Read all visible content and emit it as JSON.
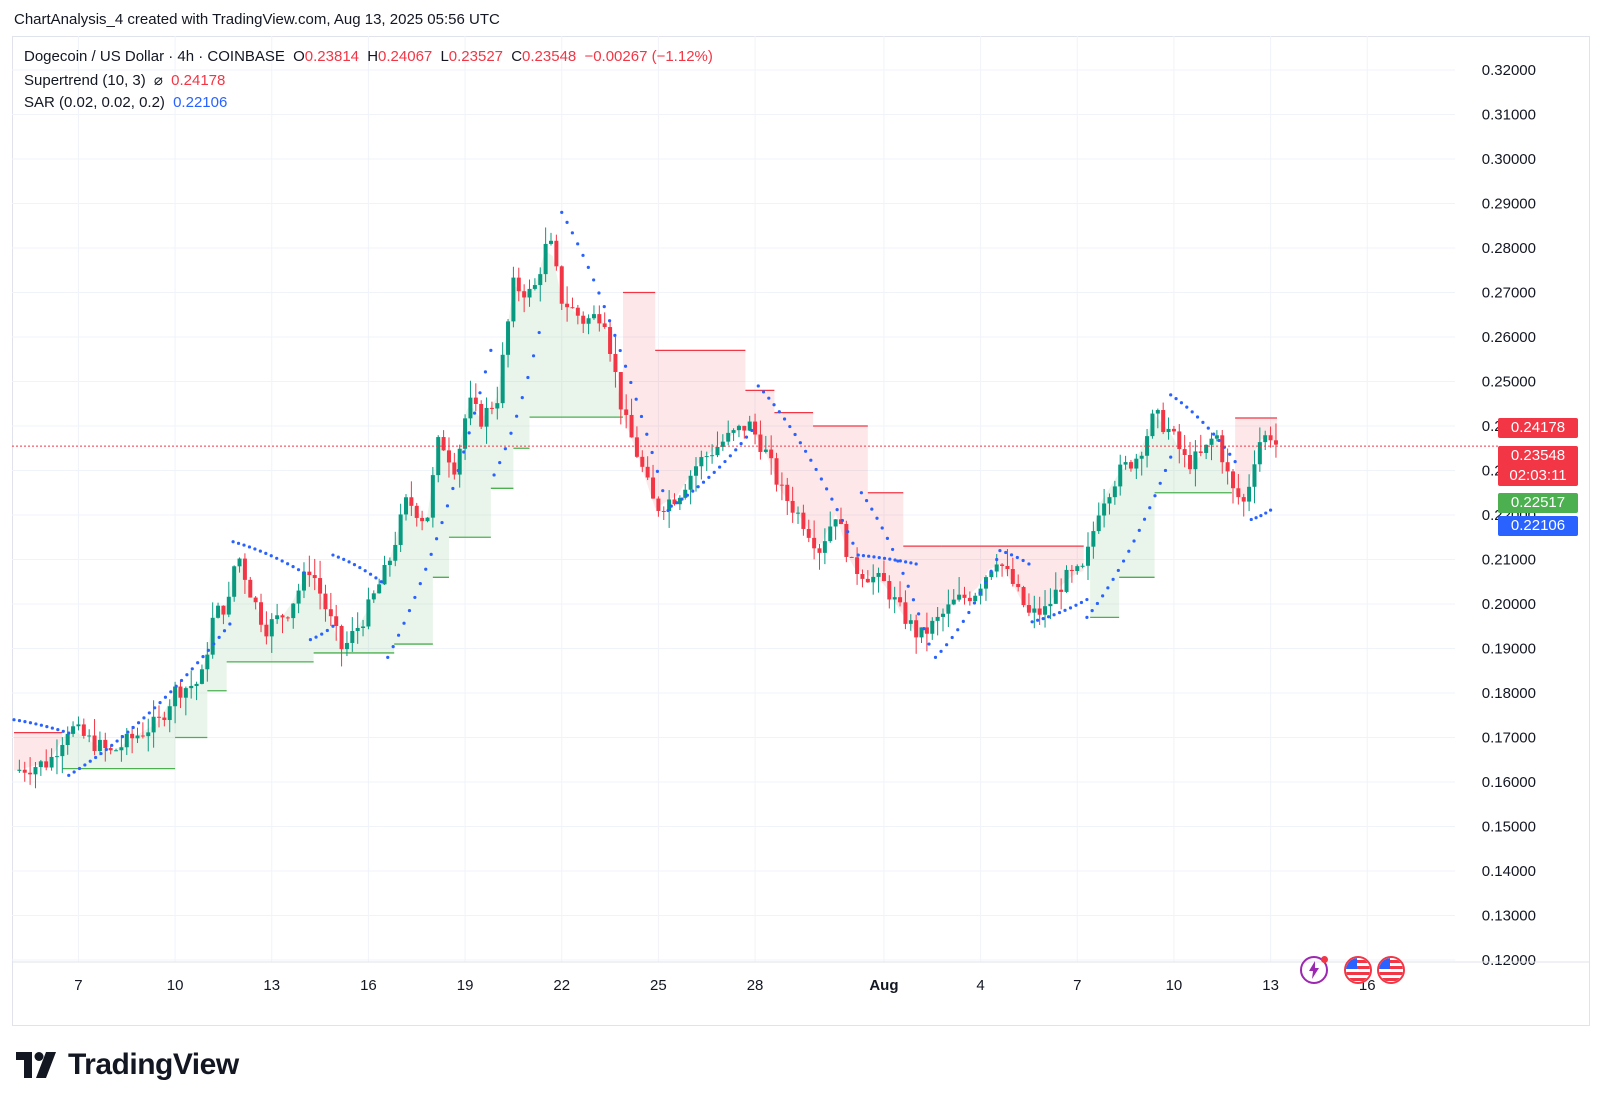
{
  "header": {
    "credit": "ChartAnalysis_4 created with TradingView.com, Aug 13, 2025 05:56 UTC"
  },
  "legend": {
    "symbol": "Dogecoin / US Dollar · 4h · COINBASE",
    "o_label": "O",
    "o_value": "0.23814",
    "h_label": "H",
    "h_value": "0.24067",
    "l_label": "L",
    "l_value": "0.23527",
    "c_label": "C",
    "c_value": "0.23548",
    "change": "−0.00267 (−1.12%)",
    "supertrend_label": "Supertrend (10, 3)",
    "supertrend_symbol": "⌀",
    "supertrend_value": "0.24178",
    "sar_label": "SAR (0.02, 0.02, 0.2)",
    "sar_value": "0.22106"
  },
  "price_tags": {
    "supertrend": "0.24178",
    "last_price": "0.23548",
    "countdown": "02:03:11",
    "support": "0.22517",
    "sar": "0.22106"
  },
  "colors": {
    "up": "#089981",
    "down": "#f23645",
    "sar": "#2962ff",
    "supertrend_up": "#4caf50",
    "supertrend_down": "#f23645"
  },
  "chart_data": {
    "type": "candlestick",
    "ylim": [
      0.12,
      0.32
    ],
    "y_ticks": [
      "0.32000",
      "0.31000",
      "0.30000",
      "0.29000",
      "0.28000",
      "0.27000",
      "0.26000",
      "0.25000",
      "0.24000",
      "0.23000",
      "0.22000",
      "0.21000",
      "0.20000",
      "0.19000",
      "0.18000",
      "0.17000",
      "0.16000",
      "0.15000",
      "0.14000",
      "0.13000",
      "0.12000"
    ],
    "x_ticks": [
      "7",
      "10",
      "13",
      "16",
      "19",
      "22",
      "25",
      "28",
      "Aug",
      "4",
      "7",
      "10",
      "13",
      "16"
    ],
    "date_start": "Jul 5",
    "close_path": [
      {
        "d": "Jul 5.0",
        "v": 0.1625
      },
      {
        "d": "Jul 6.1",
        "v": 0.1645
      },
      {
        "d": "Jul 6.7",
        "v": 0.1725
      },
      {
        "d": "Jul 7.3",
        "v": 0.1695
      },
      {
        "d": "Jul 8.0",
        "v": 0.1665
      },
      {
        "d": "Jul 8.8",
        "v": 0.1705
      },
      {
        "d": "Jul 9.5",
        "v": 0.1735
      },
      {
        "d": "Jul 10.0",
        "v": 0.1805
      },
      {
        "d": "Jul 10.8",
        "v": 0.1825
      },
      {
        "d": "Jul 11.2",
        "v": 0.1975
      },
      {
        "d": "Jul 11.7",
        "v": 0.2005
      },
      {
        "d": "Jul 11.9",
        "v": 0.2125
      },
      {
        "d": "Jul 12.3",
        "v": 0.2035
      },
      {
        "d": "Jul 12.8",
        "v": 0.1945
      },
      {
        "d": "Jul 13.5",
        "v": 0.1985
      },
      {
        "d": "Jul 14.2",
        "v": 0.2085
      },
      {
        "d": "Jul 14.7",
        "v": 0.1985
      },
      {
        "d": "Jul 15.2",
        "v": 0.1895
      },
      {
        "d": "Jul 15.9",
        "v": 0.1975
      },
      {
        "d": "Jul 16.6",
        "v": 0.2085
      },
      {
        "d": "Jul 17.2",
        "v": 0.2235
      },
      {
        "d": "Jul 17.8",
        "v": 0.2185
      },
      {
        "d": "Jul 18.2",
        "v": 0.2375
      },
      {
        "d": "Jul 18.7",
        "v": 0.2305
      },
      {
        "d": "Jul 19.1",
        "v": 0.2455
      },
      {
        "d": "Jul 19.5",
        "v": 0.2415
      },
      {
        "d": "Jul 20.0",
        "v": 0.2465
      },
      {
        "d": "Jul 20.5",
        "v": 0.2715
      },
      {
        "d": "Jul 21.1",
        "v": 0.2695
      },
      {
        "d": "Jul 21.6",
        "v": 0.2825
      },
      {
        "d": "Jul 22.0",
        "v": 0.2685
      },
      {
        "d": "Jul 22.7",
        "v": 0.2635
      },
      {
        "d": "Jul 23.3",
        "v": 0.2655
      },
      {
        "d": "Jul 23.9",
        "v": 0.2425
      },
      {
        "d": "Jul 24.4",
        "v": 0.2325
      },
      {
        "d": "Jul 24.9",
        "v": 0.2215
      },
      {
        "d": "Jul 25.6",
        "v": 0.2245
      },
      {
        "d": "Jul 26.2",
        "v": 0.2315
      },
      {
        "d": "Jul 27.0",
        "v": 0.2365
      },
      {
        "d": "Jul 27.8",
        "v": 0.2405
      },
      {
        "d": "Jul 28.3",
        "v": 0.2345
      },
      {
        "d": "Jul 28.8",
        "v": 0.2255
      },
      {
        "d": "Jul 29.5",
        "v": 0.2185
      },
      {
        "d": "Jul 30.0",
        "v": 0.2125
      },
      {
        "d": "Jul 30.5",
        "v": 0.2205
      },
      {
        "d": "Jul 31.0",
        "v": 0.2085
      },
      {
        "d": "Aug 1.0",
        "v": 0.2045
      },
      {
        "d": "Aug 1.5",
        "v": 0.1985
      },
      {
        "d": "Aug 2.1",
        "v": 0.1925
      },
      {
        "d": "Aug 2.7",
        "v": 0.1965
      },
      {
        "d": "Aug 3.2",
        "v": 0.2005
      },
      {
        "d": "Aug 3.8",
        "v": 0.2025
      },
      {
        "d": "Aug 4.5",
        "v": 0.2105
      },
      {
        "d": "Aug 5.0",
        "v": 0.2045
      },
      {
        "d": "Aug 5.5",
        "v": 0.1975
      },
      {
        "d": "Aug 6.0",
        "v": 0.1985
      },
      {
        "d": "Aug 6.6",
        "v": 0.2055
      },
      {
        "d": "Aug 7.2",
        "v": 0.2075
      },
      {
        "d": "Aug 7.7",
        "v": 0.2225
      },
      {
        "d": "Aug 8.3",
        "v": 0.2295
      },
      {
        "d": "Aug 8.9",
        "v": 0.2335
      },
      {
        "d": "Aug 9.4",
        "v": 0.2425
      },
      {
        "d": "Aug 9.9",
        "v": 0.2385
      },
      {
        "d": "Aug 10.4",
        "v": 0.2315
      },
      {
        "d": "Aug 10.9",
        "v": 0.2335
      },
      {
        "d": "Aug 11.3",
        "v": 0.2385
      },
      {
        "d": "Aug 11.8",
        "v": 0.2255
      },
      {
        "d": "Aug 12.2",
        "v": 0.2225
      },
      {
        "d": "Aug 12.6",
        "v": 0.2365
      },
      {
        "d": "Aug 13.0",
        "v": 0.2381
      },
      {
        "d": "Aug 13.2",
        "v": 0.2355
      }
    ],
    "supertrend": [
      {
        "from": "Jul 5.0",
        "to": "Jul 6.5",
        "value": 0.1711,
        "dir": "down"
      },
      {
        "from": "Jul 6.5",
        "to": "Jul 10.0",
        "value": 0.163,
        "dir": "up"
      },
      {
        "from": "Jul 10.0",
        "to": "Jul 11.0",
        "value": 0.17,
        "dir": "up"
      },
      {
        "from": "Jul 11.0",
        "to": "Jul 11.6",
        "value": 0.1805,
        "dir": "up"
      },
      {
        "from": "Jul 11.6",
        "to": "Jul 14.3",
        "value": 0.187,
        "dir": "up"
      },
      {
        "from": "Jul 14.3",
        "to": "Jul 16.8",
        "value": 0.189,
        "dir": "up"
      },
      {
        "from": "Jul 16.8",
        "to": "Jul 18.0",
        "value": 0.191,
        "dir": "up"
      },
      {
        "from": "Jul 18.0",
        "to": "Jul 18.5",
        "value": 0.206,
        "dir": "up"
      },
      {
        "from": "Jul 18.5",
        "to": "Jul 19.8",
        "value": 0.215,
        "dir": "up"
      },
      {
        "from": "Jul 19.8",
        "to": "Jul 20.5",
        "value": 0.226,
        "dir": "up"
      },
      {
        "from": "Jul 20.5",
        "to": "Jul 21.0",
        "value": 0.235,
        "dir": "up"
      },
      {
        "from": "Jul 21.0",
        "to": "Jul 23.9",
        "value": 0.242,
        "dir": "up"
      },
      {
        "from": "Jul 23.9",
        "to": "Jul 24.9",
        "value": 0.27,
        "dir": "down"
      },
      {
        "from": "Jul 24.9",
        "to": "Jul 27.7",
        "value": 0.257,
        "dir": "down"
      },
      {
        "from": "Jul 27.7",
        "to": "Jul 28.6",
        "value": 0.248,
        "dir": "down"
      },
      {
        "from": "Jul 28.6",
        "to": "Jul 29.8",
        "value": 0.243,
        "dir": "down"
      },
      {
        "from": "Jul 29.8",
        "to": "Jul 31.5",
        "value": 0.24,
        "dir": "down"
      },
      {
        "from": "Jul 31.5",
        "to": "Aug 1.6",
        "value": 0.225,
        "dir": "down"
      },
      {
        "from": "Aug 1.6",
        "to": "Aug 2.8",
        "value": 0.213,
        "dir": "down"
      },
      {
        "from": "Aug 2.8",
        "to": "Aug 7.2",
        "value": 0.213,
        "dir": "down"
      },
      {
        "from": "Aug 7.4",
        "to": "Aug 8.3",
        "value": 0.197,
        "dir": "up"
      },
      {
        "from": "Aug 8.3",
        "to": "Aug 9.4",
        "value": 0.206,
        "dir": "up"
      },
      {
        "from": "Aug 9.4",
        "to": "Aug 11.8",
        "value": 0.225,
        "dir": "up"
      },
      {
        "from": "Aug 11.9",
        "to": "Aug 13.2",
        "value": 0.2418,
        "dir": "down"
      }
    ],
    "sar": [
      {
        "from": "Jul 5.0",
        "to": "Jul 6.7",
        "start": 0.174,
        "end": 0.171
      },
      {
        "from": "Jul 6.7",
        "to": "Jul 11.7",
        "start": 0.1615,
        "end": 0.1955
      },
      {
        "from": "Jul 11.8",
        "to": "Jul 14.0",
        "start": 0.214,
        "end": 0.207
      },
      {
        "from": "Jul 14.2",
        "to": "Jul 14.9",
        "start": 0.192,
        "end": 0.195
      },
      {
        "from": "Jul 14.9",
        "to": "Jul 16.4",
        "start": 0.211,
        "end": 0.205
      },
      {
        "from": "Jul 16.6",
        "to": "Jul 19.8",
        "start": 0.188,
        "end": 0.257
      },
      {
        "from": "Jul 19.9",
        "to": "Jul 21.3",
        "start": 0.229,
        "end": 0.261
      },
      {
        "from": "Jul 22.0",
        "to": "Jul 25.3",
        "start": 0.288,
        "end": 0.221
      },
      {
        "from": "Jul 25.4",
        "to": "Jul 27.9",
        "start": 0.222,
        "end": 0.239
      },
      {
        "from": "Jul 28.1",
        "to": "Jul 31.2",
        "start": 0.249,
        "end": 0.211
      },
      {
        "from": "Jul 31.2",
        "to": "Aug 2.0",
        "start": 0.211,
        "end": 0.209
      },
      {
        "from": "Jul 31.3",
        "to": "Aug 2.4",
        "start": 0.225,
        "end": 0.191
      },
      {
        "from": "Aug 2.6",
        "to": "Aug 4.5",
        "start": 0.188,
        "end": 0.21
      },
      {
        "from": "Aug 4.6",
        "to": "Aug 5.5",
        "start": 0.212,
        "end": 0.209
      },
      {
        "from": "Aug 5.6",
        "to": "Aug 7.3",
        "start": 0.196,
        "end": 0.201
      },
      {
        "from": "Aug 7.3",
        "to": "Aug 9.9",
        "start": 0.197,
        "end": 0.233
      },
      {
        "from": "Aug 9.9",
        "to": "Aug 11.9",
        "start": 0.247,
        "end": 0.232
      },
      {
        "from": "Aug 12.4",
        "to": "Aug 13.0",
        "start": 0.219,
        "end": 0.2211
      }
    ]
  },
  "branding": {
    "logo_text": "TradingView"
  }
}
